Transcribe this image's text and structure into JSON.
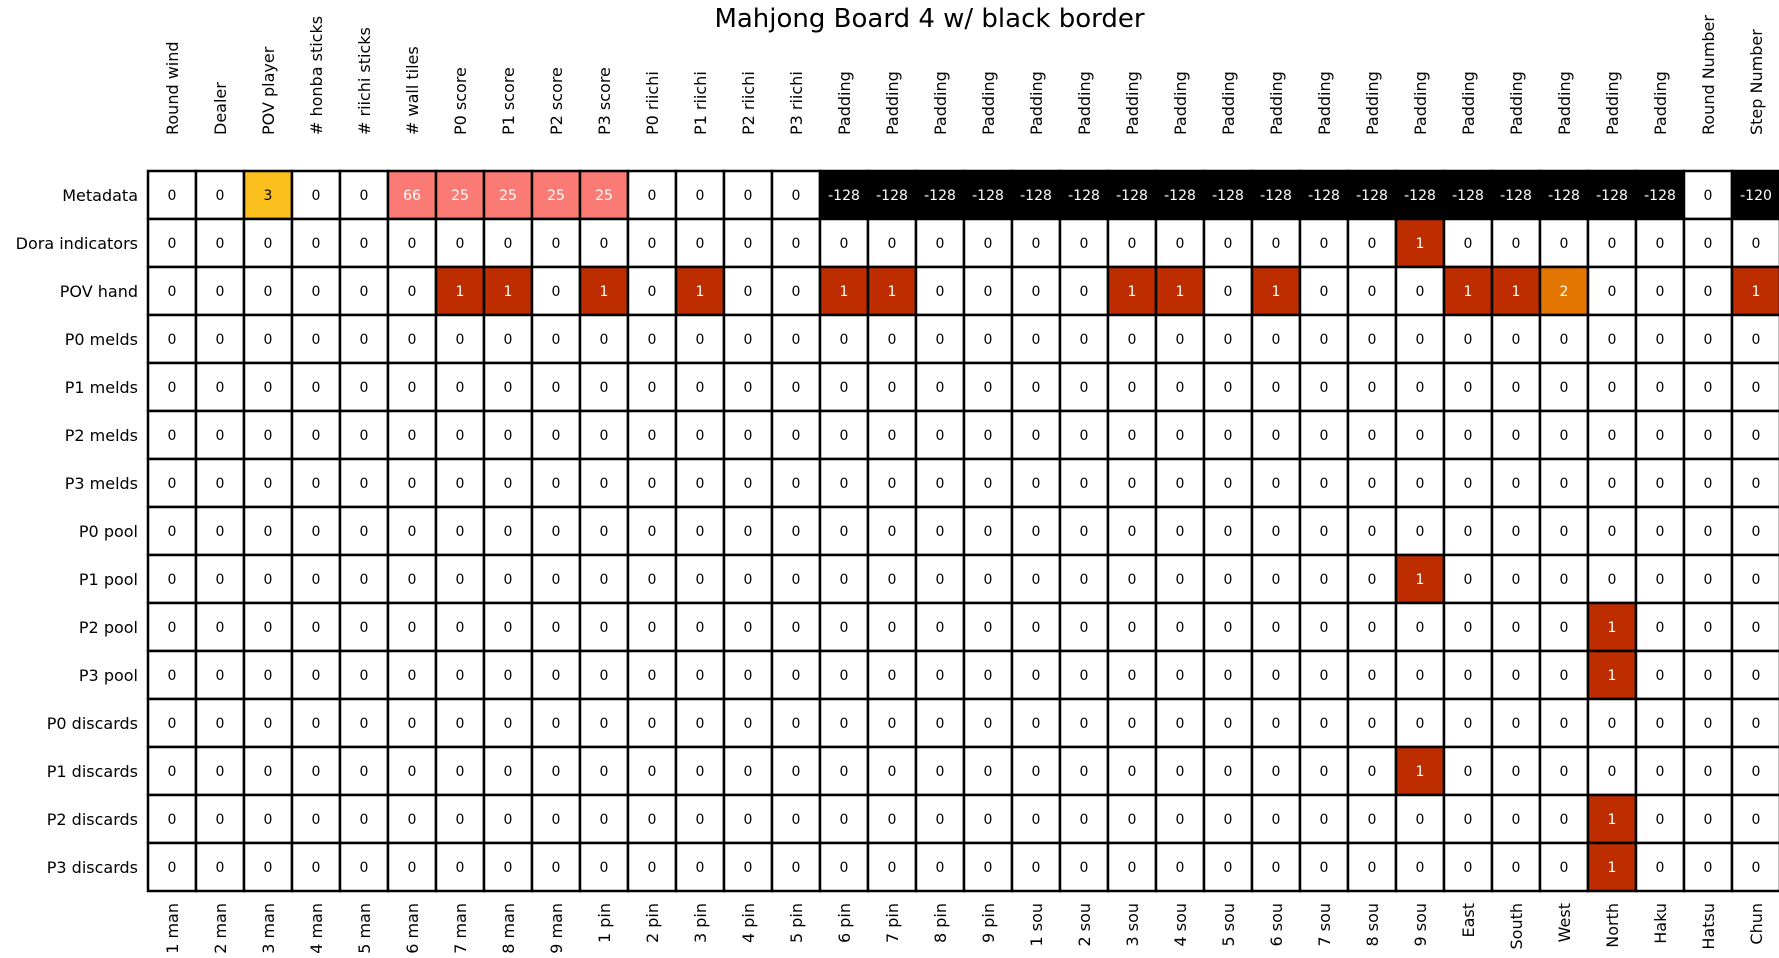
{
  "chart_data": {
    "type": "heatmap",
    "title": "Mahjong Board 4 w/ black border",
    "top_labels": [
      "Round wind",
      "Dealer",
      "POV player",
      "# honba sticks",
      "# riichi sticks",
      "# wall tiles",
      "P0 score",
      "P1 score",
      "P2 score",
      "P3 score",
      "P0 riichi",
      "P1 riichi",
      "P2 riichi",
      "P3 riichi",
      "Padding",
      "Padding",
      "Padding",
      "Padding",
      "Padding",
      "Padding",
      "Padding",
      "Padding",
      "Padding",
      "Padding",
      "Padding",
      "Padding",
      "Padding",
      "Padding",
      "Padding",
      "Padding",
      "Padding",
      "Padding",
      "Round Number",
      "Step Number"
    ],
    "bottom_labels": [
      "1 man",
      "2 man",
      "3 man",
      "4 man",
      "5 man",
      "6 man",
      "7 man",
      "8 man",
      "9 man",
      "1 pin",
      "2 pin",
      "3 pin",
      "4 pin",
      "5 pin",
      "6 pin",
      "7 pin",
      "8 pin",
      "9 pin",
      "1 sou",
      "2 sou",
      "3 sou",
      "4 sou",
      "5 sou",
      "6 sou",
      "7 sou",
      "8 sou",
      "9 sou",
      "East",
      "South",
      "West",
      "North",
      "Haku",
      "Hatsu",
      "Chun"
    ],
    "row_labels": [
      "Metadata",
      "Dora indicators",
      "POV hand",
      "P0 melds",
      "P1 melds",
      "P2 melds",
      "P3 melds",
      "P0 pool",
      "P1 pool",
      "P2 pool",
      "P3 pool",
      "P0 discards",
      "P1 discards",
      "P2 discards",
      "P3 discards"
    ],
    "values": [
      [
        0,
        0,
        3,
        0,
        0,
        66,
        25,
        25,
        25,
        25,
        0,
        0,
        0,
        0,
        -128,
        -128,
        -128,
        -128,
        -128,
        -128,
        -128,
        -128,
        -128,
        -128,
        -128,
        -128,
        -128,
        -128,
        -128,
        -128,
        -128,
        -128,
        0,
        -120
      ],
      [
        0,
        0,
        0,
        0,
        0,
        0,
        0,
        0,
        0,
        0,
        0,
        0,
        0,
        0,
        0,
        0,
        0,
        0,
        0,
        0,
        0,
        0,
        0,
        0,
        0,
        0,
        1,
        0,
        0,
        0,
        0,
        0,
        0,
        0
      ],
      [
        0,
        0,
        0,
        0,
        0,
        0,
        1,
        1,
        0,
        1,
        0,
        1,
        0,
        0,
        1,
        1,
        0,
        0,
        0,
        0,
        1,
        1,
        0,
        1,
        0,
        0,
        0,
        1,
        1,
        2,
        0,
        0,
        0,
        1
      ],
      [
        0,
        0,
        0,
        0,
        0,
        0,
        0,
        0,
        0,
        0,
        0,
        0,
        0,
        0,
        0,
        0,
        0,
        0,
        0,
        0,
        0,
        0,
        0,
        0,
        0,
        0,
        0,
        0,
        0,
        0,
        0,
        0,
        0,
        0
      ],
      [
        0,
        0,
        0,
        0,
        0,
        0,
        0,
        0,
        0,
        0,
        0,
        0,
        0,
        0,
        0,
        0,
        0,
        0,
        0,
        0,
        0,
        0,
        0,
        0,
        0,
        0,
        0,
        0,
        0,
        0,
        0,
        0,
        0,
        0
      ],
      [
        0,
        0,
        0,
        0,
        0,
        0,
        0,
        0,
        0,
        0,
        0,
        0,
        0,
        0,
        0,
        0,
        0,
        0,
        0,
        0,
        0,
        0,
        0,
        0,
        0,
        0,
        0,
        0,
        0,
        0,
        0,
        0,
        0,
        0
      ],
      [
        0,
        0,
        0,
        0,
        0,
        0,
        0,
        0,
        0,
        0,
        0,
        0,
        0,
        0,
        0,
        0,
        0,
        0,
        0,
        0,
        0,
        0,
        0,
        0,
        0,
        0,
        0,
        0,
        0,
        0,
        0,
        0,
        0,
        0
      ],
      [
        0,
        0,
        0,
        0,
        0,
        0,
        0,
        0,
        0,
        0,
        0,
        0,
        0,
        0,
        0,
        0,
        0,
        0,
        0,
        0,
        0,
        0,
        0,
        0,
        0,
        0,
        0,
        0,
        0,
        0,
        0,
        0,
        0,
        0
      ],
      [
        0,
        0,
        0,
        0,
        0,
        0,
        0,
        0,
        0,
        0,
        0,
        0,
        0,
        0,
        0,
        0,
        0,
        0,
        0,
        0,
        0,
        0,
        0,
        0,
        0,
        0,
        1,
        0,
        0,
        0,
        0,
        0,
        0,
        0
      ],
      [
        0,
        0,
        0,
        0,
        0,
        0,
        0,
        0,
        0,
        0,
        0,
        0,
        0,
        0,
        0,
        0,
        0,
        0,
        0,
        0,
        0,
        0,
        0,
        0,
        0,
        0,
        0,
        0,
        0,
        0,
        1,
        0,
        0,
        0
      ],
      [
        0,
        0,
        0,
        0,
        0,
        0,
        0,
        0,
        0,
        0,
        0,
        0,
        0,
        0,
        0,
        0,
        0,
        0,
        0,
        0,
        0,
        0,
        0,
        0,
        0,
        0,
        0,
        0,
        0,
        0,
        1,
        0,
        0,
        0
      ],
      [
        0,
        0,
        0,
        0,
        0,
        0,
        0,
        0,
        0,
        0,
        0,
        0,
        0,
        0,
        0,
        0,
        0,
        0,
        0,
        0,
        0,
        0,
        0,
        0,
        0,
        0,
        0,
        0,
        0,
        0,
        0,
        0,
        0,
        0
      ],
      [
        0,
        0,
        0,
        0,
        0,
        0,
        0,
        0,
        0,
        0,
        0,
        0,
        0,
        0,
        0,
        0,
        0,
        0,
        0,
        0,
        0,
        0,
        0,
        0,
        0,
        0,
        1,
        0,
        0,
        0,
        0,
        0,
        0,
        0
      ],
      [
        0,
        0,
        0,
        0,
        0,
        0,
        0,
        0,
        0,
        0,
        0,
        0,
        0,
        0,
        0,
        0,
        0,
        0,
        0,
        0,
        0,
        0,
        0,
        0,
        0,
        0,
        0,
        0,
        0,
        0,
        1,
        0,
        0,
        0
      ],
      [
        0,
        0,
        0,
        0,
        0,
        0,
        0,
        0,
        0,
        0,
        0,
        0,
        0,
        0,
        0,
        0,
        0,
        0,
        0,
        0,
        0,
        0,
        0,
        0,
        0,
        0,
        0,
        0,
        0,
        0,
        1,
        0,
        0,
        0
      ]
    ],
    "colors": {
      "zero": "#ffffff",
      "one": "#be2d00",
      "two": "#e27600",
      "pov_player": "#fbbf1e",
      "scores": "#fb7b74",
      "negative": "#000000",
      "grid_line": "#000000"
    }
  }
}
